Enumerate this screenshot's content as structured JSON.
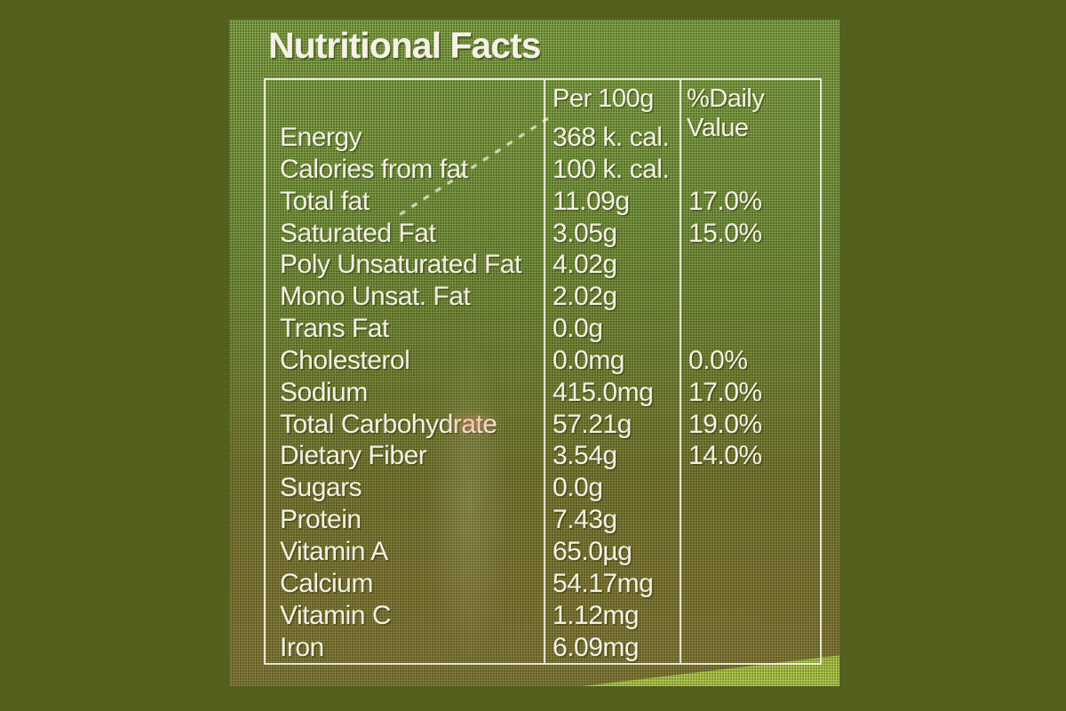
{
  "label": {
    "title": "Nutritional Facts",
    "columns": {
      "amount": "Per 100g",
      "daily_value": "%Daily Value"
    },
    "rows": [
      {
        "label": "Energy",
        "value": "368 k. cal.",
        "dv": ""
      },
      {
        "label": "Calories from fat",
        "value": "100 k. cal.",
        "dv": ""
      },
      {
        "label": "Total fat",
        "value": "11.09g",
        "dv": "17.0%"
      },
      {
        "label": "Saturated Fat",
        "value": "3.05g",
        "dv": "15.0%"
      },
      {
        "label": "Poly Unsaturated Fat",
        "value": "4.02g",
        "dv": ""
      },
      {
        "label": "Mono Unsat. Fat",
        "value": "2.02g",
        "dv": ""
      },
      {
        "label": "Trans Fat",
        "value": "0.0g",
        "dv": ""
      },
      {
        "label": "Cholesterol",
        "value": "0.0mg",
        "dv": "0.0%"
      },
      {
        "label": "Sodium",
        "value": "415.0mg",
        "dv": "17.0%"
      },
      {
        "label": "Total Carbohydrate",
        "value": "57.21g",
        "dv": "19.0%"
      },
      {
        "label": "Dietary Fiber",
        "value": "3.54g",
        "dv": "14.0%"
      },
      {
        "label": "Sugars",
        "value": "0.0g",
        "dv": ""
      },
      {
        "label": "Protein",
        "value": "7.43g",
        "dv": ""
      },
      {
        "label": "Vitamin A",
        "value": "65.0µg",
        "dv": ""
      },
      {
        "label": "Calcium",
        "value": "54.17mg",
        "dv": ""
      },
      {
        "label": "Vitamin C",
        "value": "1.12mg",
        "dv": ""
      },
      {
        "label": "Iron",
        "value": "6.09mg",
        "dv": ""
      }
    ],
    "colors": {
      "page_background": "#53601e",
      "label_green_top": "#7a9a41",
      "label_olive_bottom": "#7d7133",
      "wedge_green": "#aec548",
      "text": "#f3f0e3",
      "border": "#f3f1e2"
    }
  }
}
